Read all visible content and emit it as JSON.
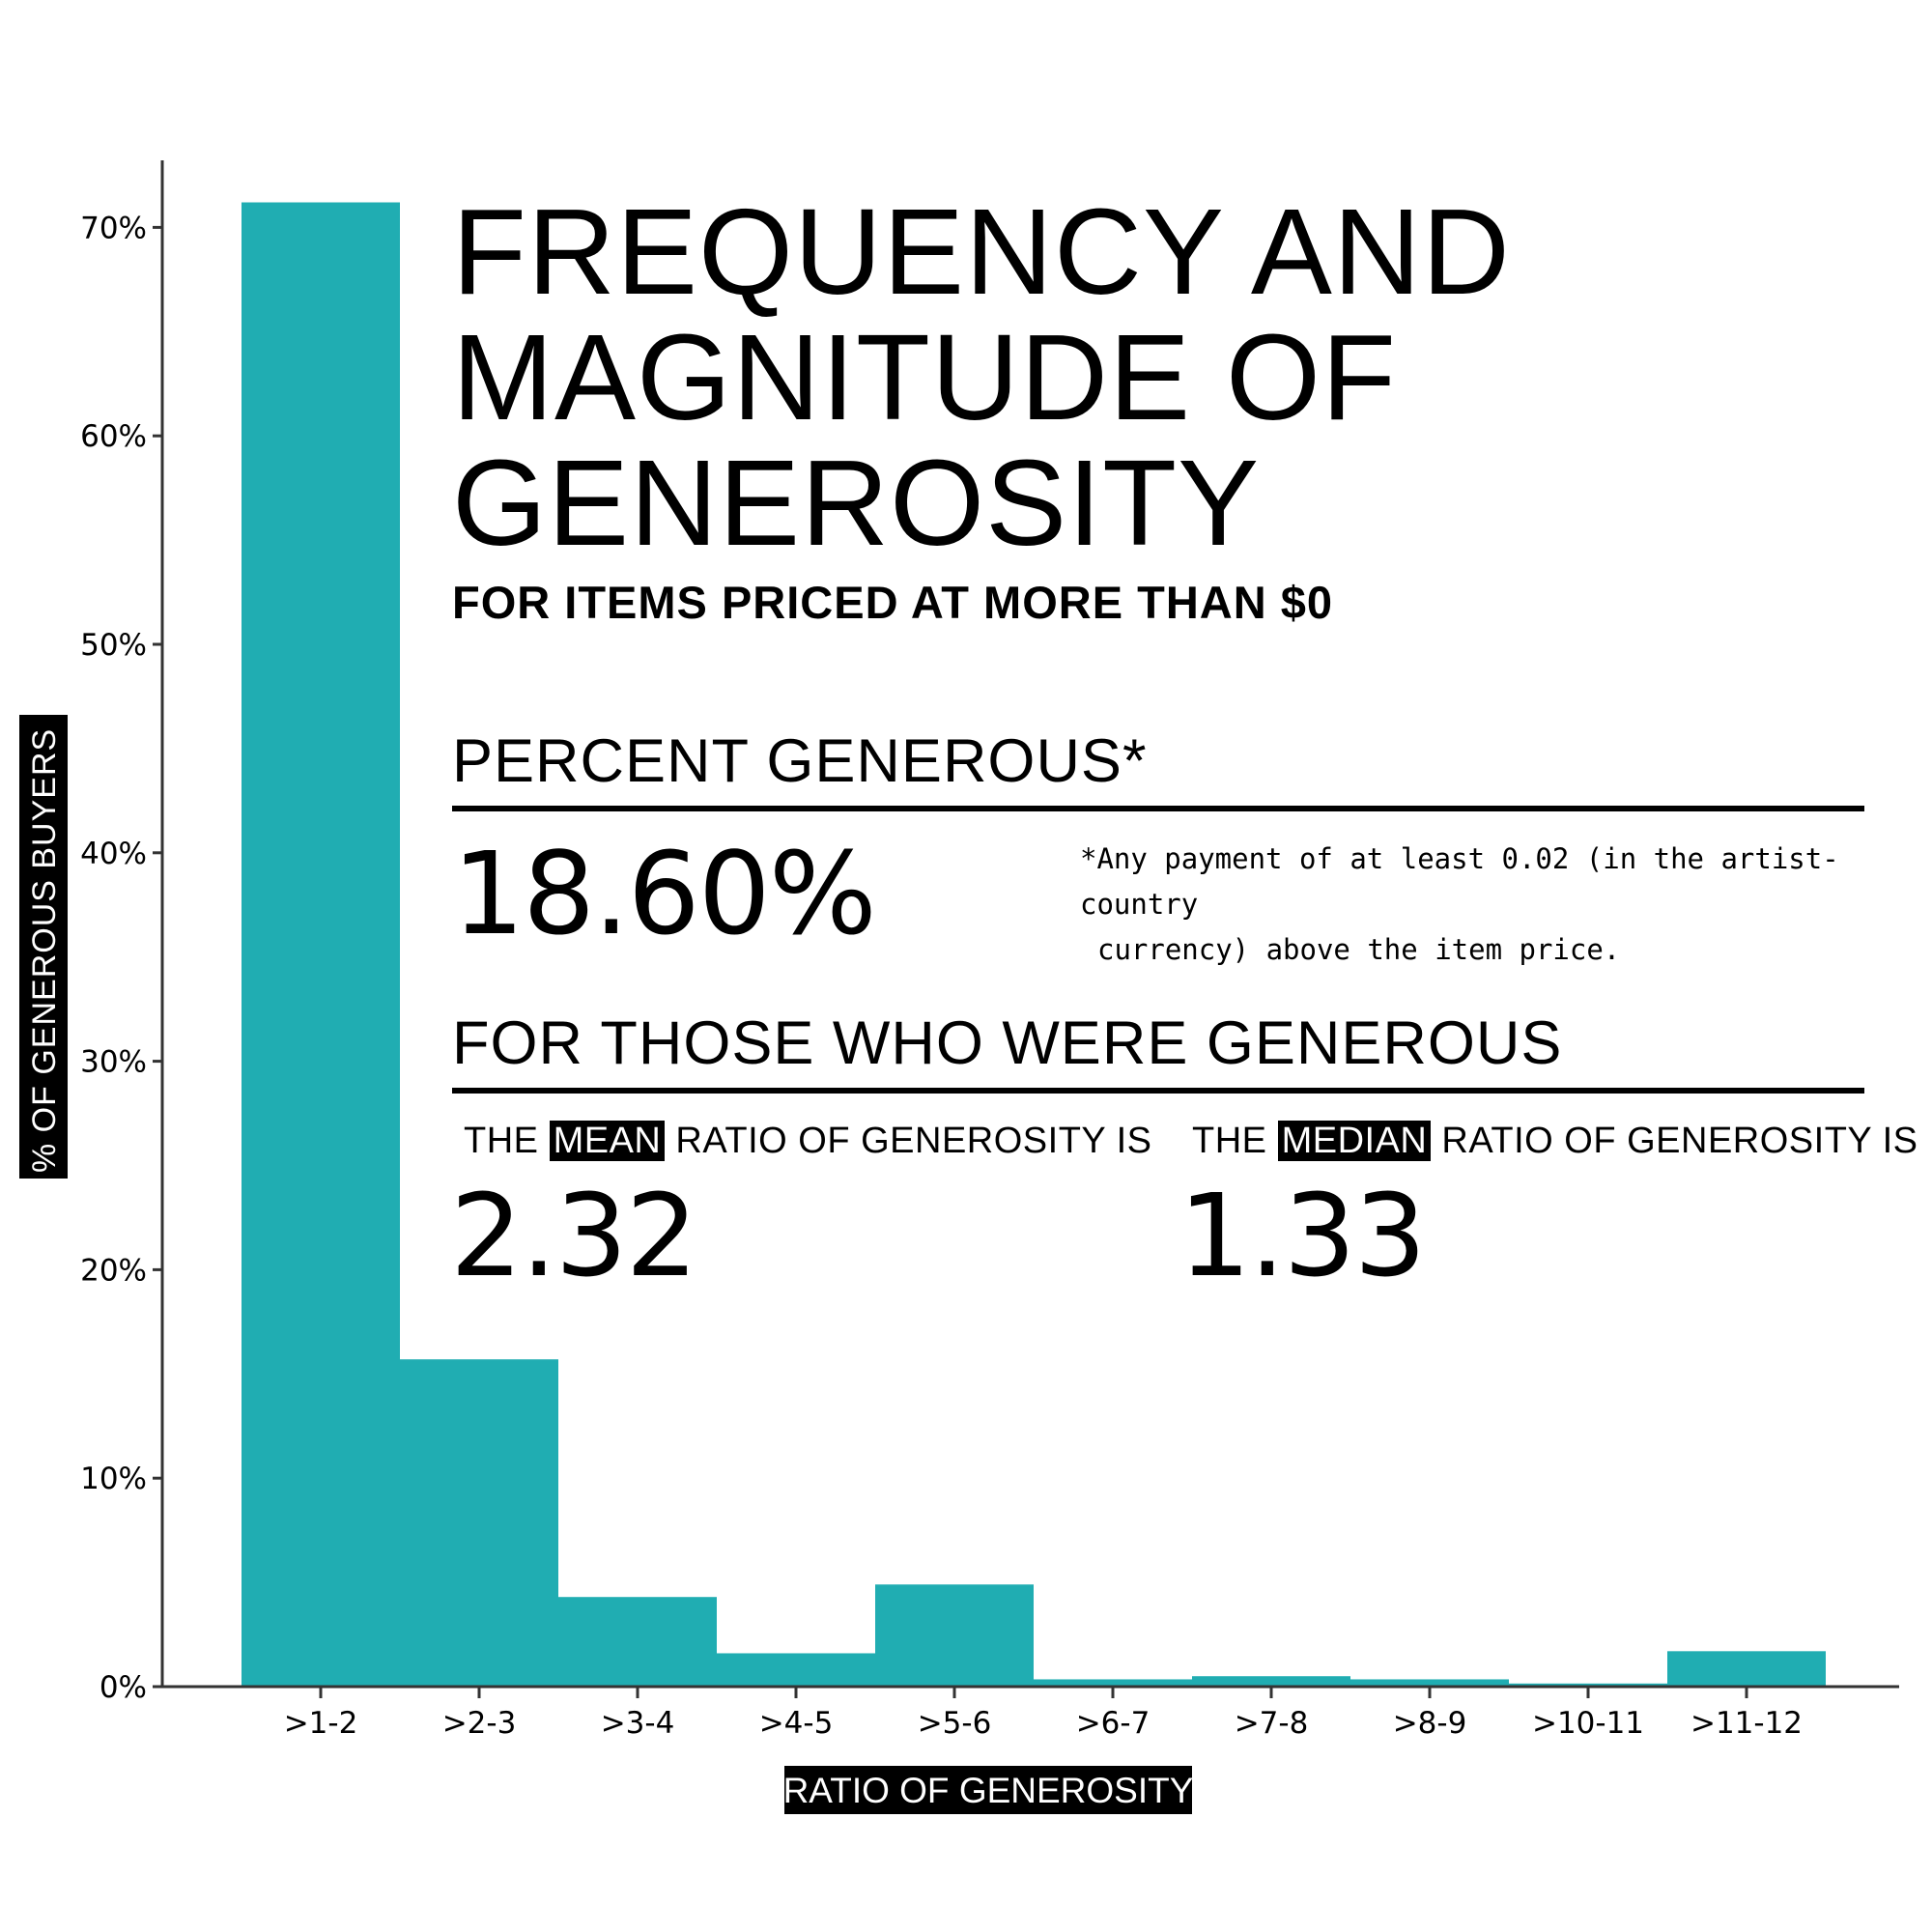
{
  "title_lines": [
    "FREQUENCY AND",
    "MAGNITUDE OF",
    "GENEROSITY"
  ],
  "subtitle": "FOR ITEMS PRICED AT MORE THAN $0",
  "percent_section": {
    "heading": "PERCENT GENEROUS*",
    "value": "18.60%",
    "footnote_line1": "*Any payment of at least 0.02 (in the artist-country",
    "footnote_line2": "currency) above the item price."
  },
  "generous_section": {
    "heading": "FOR THOSE WHO WERE GENEROUS",
    "mean": {
      "prefix": "THE",
      "highlight": "MEAN",
      "suffix": "RATIO OF GENEROSITY IS",
      "value": "2.32"
    },
    "median": {
      "prefix": "THE",
      "highlight": "MEDIAN",
      "suffix": "RATIO OF GENEROSITY IS",
      "value": "1.33"
    }
  },
  "colors": {
    "bar": "#20adb2",
    "axis": "#333333",
    "text": "#000000"
  },
  "chart_data": {
    "type": "bar",
    "categories": [
      ">1-2",
      ">2-3",
      ">3-4",
      ">4-5",
      ">5-6",
      ">6-7",
      ">7-8",
      ">8-9",
      ">10-11",
      ">11-12"
    ],
    "values": [
      71.2,
      15.7,
      4.3,
      1.6,
      4.9,
      0.35,
      0.5,
      0.35,
      0.15,
      1.7
    ],
    "xlabel": "RATIO OF GENEROSITY",
    "ylabel": "% OF GENEROUS BUYERS",
    "ylim": [
      0,
      73
    ],
    "yticks": [
      0,
      10,
      20,
      30,
      40,
      50,
      60,
      70
    ],
    "ytick_labels": [
      "0%",
      "10%",
      "20%",
      "30%",
      "40%",
      "50%",
      "60%",
      "70%"
    ],
    "grid": false,
    "legend": "none"
  }
}
